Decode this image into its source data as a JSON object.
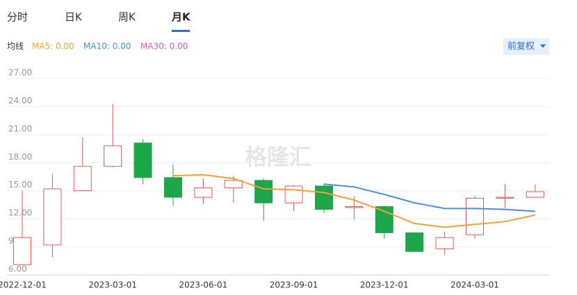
{
  "tabs": [
    "分时",
    "日K",
    "周K",
    "月K"
  ],
  "active_tab": "月K",
  "ma_label": "均线",
  "legend": [
    {
      "label": "MA5: 0.00",
      "color": "#f5a035"
    },
    {
      "label": "MA10: 0.00",
      "color": "#4a8fe2"
    },
    {
      "label": "MA30: 0.00",
      "color": "#d65bc8"
    }
  ],
  "adjust_button": "前复权",
  "watermark": "格隆汇",
  "chart_data": {
    "type": "candlestick",
    "categories": [
      "2022-12-01",
      null,
      null,
      "2023-03-01",
      null,
      null,
      "2023-06-01",
      null,
      null,
      "2023-09-01",
      null,
      null,
      "2023-12-01",
      null,
      null,
      "2024-03-01",
      null,
      null
    ],
    "open": [
      7.1,
      9.2,
      15.0,
      17.6,
      20.1,
      16.4,
      14.3,
      15.3,
      16.1,
      13.7,
      15.5,
      13.2,
      13.3,
      10.5,
      8.8,
      10.3,
      14.2,
      14.3
    ],
    "high": [
      15.0,
      16.8,
      20.7,
      24.3,
      20.5,
      17.8,
      16.3,
      16.6,
      16.3,
      15.6,
      15.7,
      14.4,
      13.4,
      10.5,
      10.6,
      14.5,
      15.7,
      15.7
    ],
    "low": [
      7.0,
      7.9,
      15.0,
      17.5,
      15.7,
      13.4,
      13.6,
      13.7,
      11.8,
      12.8,
      12.6,
      11.9,
      9.9,
      8.5,
      8.1,
      9.9,
      13.1,
      14.3
    ],
    "close": [
      10.0,
      15.2,
      17.6,
      19.8,
      16.4,
      14.3,
      15.3,
      16.1,
      13.7,
      15.5,
      13.0,
      13.3,
      10.5,
      8.5,
      10.0,
      14.2,
      14.3,
      14.9
    ],
    "up_color": "#e8575a",
    "down_color": "#1da64a",
    "lines": [
      {
        "color": "#f5a035",
        "values": [
          null,
          null,
          null,
          null,
          null,
          16.6,
          16.7,
          16.3,
          15.2,
          15.1,
          14.8,
          14.0,
          12.8,
          11.5,
          11.1,
          11.4,
          11.7,
          12.4
        ]
      },
      {
        "color": "#4a8fe2",
        "values": [
          null,
          null,
          null,
          null,
          null,
          null,
          null,
          null,
          null,
          null,
          15.7,
          15.4,
          14.6,
          13.7,
          13.1,
          13.1,
          13.0,
          12.8
        ]
      }
    ],
    "ylim": [
      6,
      27
    ],
    "yticks": [
      {
        "value": 6,
        "label": "6.00"
      },
      {
        "value": 9,
        "label": "9.00"
      },
      {
        "value": 12,
        "label": "12.00"
      },
      {
        "value": 15,
        "label": "15.00"
      },
      {
        "value": 18,
        "label": "18.00"
      },
      {
        "value": 21,
        "label": "21.00"
      },
      {
        "value": 24,
        "label": "24.00"
      },
      {
        "value": 27,
        "label": "27.00"
      }
    ],
    "grid": true
  }
}
